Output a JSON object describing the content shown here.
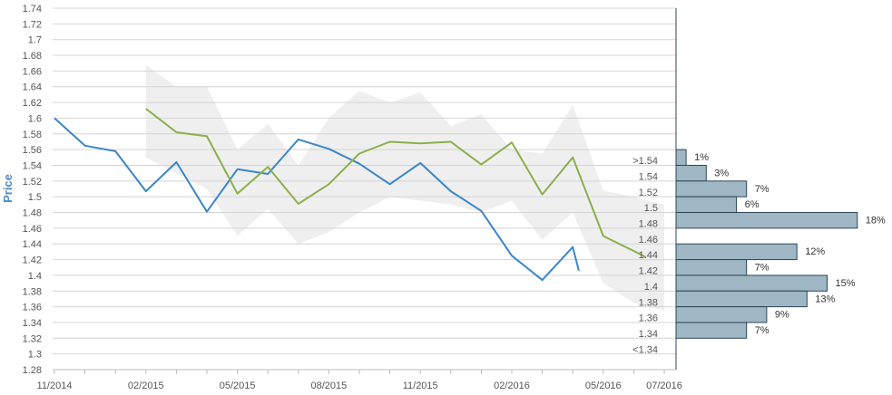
{
  "chart_data": {
    "type": "line",
    "ylabel": "Price",
    "ylim": [
      1.28,
      1.74
    ],
    "y_ticks": [
      "1.74",
      "1.72",
      "1.7",
      "1.68",
      "1.66",
      "1.64",
      "1.62",
      "1.6",
      "1.58",
      "1.56",
      "1.54",
      "1.52",
      "1.5",
      "1.48",
      "1.46",
      "1.44",
      "1.42",
      "1.4",
      "1.38",
      "1.36",
      "1.34",
      "1.32",
      "1.3",
      "1.28"
    ],
    "x_ticks": [
      "11/2014",
      "02/2015",
      "05/2015",
      "08/2015",
      "11/2015",
      "02/2016",
      "05/2016",
      "07/2016"
    ],
    "x_tick_months": [
      0,
      3,
      6,
      9,
      12,
      15,
      18,
      20
    ],
    "grid": true,
    "colors": {
      "actual": "#3a86c8",
      "forecast": "#8ab04a",
      "band": "#efefef",
      "bar_fill": "#9fb6c4",
      "bar_stroke": "#2d4656",
      "grid": "#d4d4d4",
      "ylabel": "#4a8ac9"
    },
    "series": [
      {
        "key": "actual",
        "months": [
          0,
          1,
          2,
          3,
          4,
          5,
          6,
          7,
          8,
          9,
          10,
          11,
          12,
          13,
          14,
          15,
          16,
          17,
          17.2
        ],
        "values": [
          1.6,
          1.565,
          1.558,
          1.507,
          1.544,
          1.481,
          1.535,
          1.529,
          1.573,
          1.561,
          1.542,
          1.516,
          1.543,
          1.507,
          1.482,
          1.425,
          1.394,
          1.436,
          1.406
        ]
      },
      {
        "key": "forecast",
        "months": [
          3,
          4,
          5,
          6,
          7,
          8,
          9,
          10,
          11,
          12,
          13,
          14,
          15,
          16,
          17,
          18,
          19,
          19.4
        ],
        "values": [
          1.612,
          1.582,
          1.577,
          1.504,
          1.538,
          1.491,
          1.516,
          1.555,
          1.57,
          1.568,
          1.57,
          1.541,
          1.569,
          1.503,
          1.55,
          1.45,
          1.431,
          1.423
        ]
      }
    ],
    "band": {
      "months": [
        3,
        4,
        5,
        6,
        7,
        8,
        9,
        10,
        11,
        12,
        13,
        14,
        15,
        16,
        17,
        18,
        19,
        20
      ],
      "upper": [
        1.668,
        1.64,
        1.64,
        1.56,
        1.593,
        1.54,
        1.6,
        1.635,
        1.62,
        1.633,
        1.59,
        1.605,
        1.56,
        1.555,
        1.617,
        1.508,
        1.5,
        1.49
      ],
      "lower": [
        1.55,
        1.53,
        1.51,
        1.45,
        1.485,
        1.44,
        1.455,
        1.48,
        1.5,
        1.495,
        1.49,
        1.48,
        1.495,
        1.445,
        1.48,
        1.39,
        1.365,
        1.355
      ]
    },
    "distribution": {
      "labels": [
        ">1.54",
        "1.54",
        "1.52",
        "1.5",
        "1.48",
        "1.46",
        "1.44",
        "1.42",
        "1.4",
        "1.38",
        "1.36",
        "1.34",
        "<1.34"
      ],
      "bins": [
        {
          "price": 1.55,
          "pct": 1,
          "label": "1%"
        },
        {
          "price": 1.53,
          "pct": 3,
          "label": "3%"
        },
        {
          "price": 1.51,
          "pct": 7,
          "label": "7%"
        },
        {
          "price": 1.49,
          "pct": 6,
          "label": "6%"
        },
        {
          "price": 1.47,
          "pct": 18,
          "label": "18%"
        },
        {
          "price": 1.43,
          "pct": 12,
          "label": "12%"
        },
        {
          "price": 1.41,
          "pct": 7,
          "label": "7%"
        },
        {
          "price": 1.39,
          "pct": 15,
          "label": "15%"
        },
        {
          "price": 1.37,
          "pct": 13,
          "label": "13%"
        },
        {
          "price": 1.35,
          "pct": 9,
          "label": "9%"
        },
        {
          "price": 1.33,
          "pct": 7,
          "label": "7%"
        }
      ]
    }
  }
}
